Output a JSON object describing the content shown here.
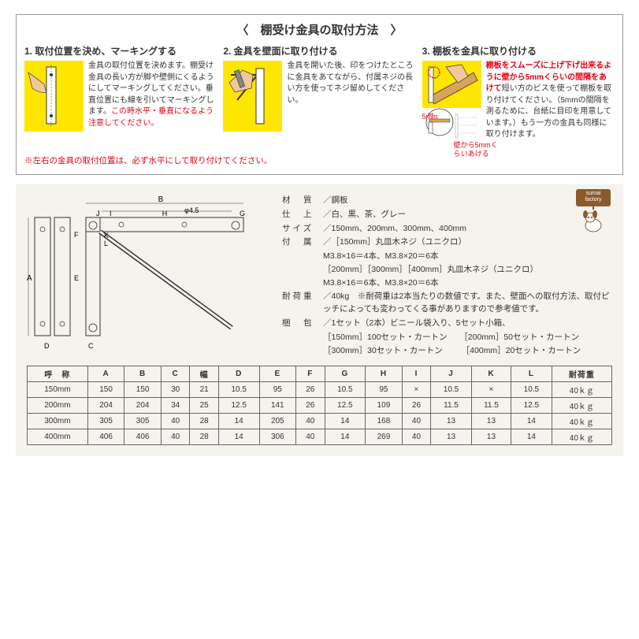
{
  "title": "〈　棚受け金具の取付方法　〉",
  "steps": [
    {
      "title": "1. 取付位置を決め、マーキングする",
      "text_a": "金具の取付位置を決めます。棚受け金具の長い方が脚や壁側にくるようにしてマーキングしてください。垂直位置にも線を引いてマーキングします。",
      "text_b": "この時水平・垂直になるよう注意してください。",
      "illustration_bg": "#ffe600"
    },
    {
      "title": "2. 金具を壁面に取り付ける",
      "text_a": "金具を開いた後、印をつけたところに金具をあてながら、付属ネジの長い方を使ってネジ留めしてください。",
      "illustration_bg": "#ffe600"
    },
    {
      "title": "3. 棚板を金具に取り付ける",
      "text_a_red": "棚板をスムーズに上げ下げ出来るように壁から5mmくらいの間隔をあけて",
      "text_a_black": "短い方のビスを使って棚板を取り付けてください。（5mmの間隔を測るために、台紙に目印を用意しています。）もう一方の金具も同様に取り付けます。",
      "annot1": "5mm",
      "annot2": "壁から5mmくらいあける",
      "illustration_bg": "#ffe600"
    }
  ],
  "footer_note": "※左右の金具の取付位置は、必ず水平にして取り付けてください。",
  "mascot_text": "sumai factory",
  "specs": {
    "material_label": "材　質",
    "material": "／鋼板",
    "finish_label": "仕　上",
    "finish": "／白、黒、茶、グレー",
    "size_label": "サイズ",
    "size": "／150mm、200mm、300mm、400mm",
    "accessory_label": "付　属",
    "accessory1": "／［150mm］丸皿木ネジ（ユニクロ）",
    "accessory2": "M3.8×16＝4本、M3.8×20＝6本",
    "accessory3": "［200mm］［300mm］［400mm］丸皿木ネジ（ユニクロ）",
    "accessory4": "M3.8×16＝6本、M3.8×20＝6本",
    "load_label": "耐荷重",
    "load": "／40kg　※耐荷重は2本当たりの数値です。また、壁面への取付方法、取付ピッチによっても変わってくる事がありますので参考値です。",
    "pack_label": "梱　包",
    "pack1": "／1セット（2本）ビニール袋入り、5セット小箱、",
    "pack2": "［150mm］100セット・カートン　　［200mm］50セット・カートン",
    "pack3": "［300mm］30セット・カートン　　 ［400mm］20セット・カートン"
  },
  "diagram_labels": [
    "A",
    "B",
    "C",
    "D",
    "E",
    "F",
    "G",
    "H",
    "I",
    "J",
    "K",
    "L",
    "φ4.5"
  ],
  "table": {
    "columns": [
      "呼　称",
      "A",
      "B",
      "C",
      "幅",
      "D",
      "E",
      "F",
      "G",
      "H",
      "I",
      "J",
      "K",
      "L",
      "耐荷重"
    ],
    "rows": [
      [
        "150mm",
        "150",
        "150",
        "30",
        "21",
        "10.5",
        "95",
        "26",
        "10.5",
        "95",
        "×",
        "10.5",
        "×",
        "10.5",
        "40ｋｇ"
      ],
      [
        "200mm",
        "204",
        "204",
        "34",
        "25",
        "12.5",
        "141",
        "26",
        "12.5",
        "109",
        "26",
        "11.5",
        "11.5",
        "12.5",
        "40ｋｇ"
      ],
      [
        "300mm",
        "305",
        "305",
        "40",
        "28",
        "14",
        "205",
        "40",
        "14",
        "168",
        "40",
        "13",
        "13",
        "14",
        "40ｋｇ"
      ],
      [
        "400mm",
        "406",
        "406",
        "40",
        "28",
        "14",
        "306",
        "40",
        "14",
        "269",
        "40",
        "13",
        "13",
        "14",
        "40ｋｇ"
      ]
    ]
  },
  "colors": {
    "red": "#e60012",
    "bg_lower": "#f5f3ed",
    "yellow": "#ffe600",
    "border": "#666666"
  }
}
